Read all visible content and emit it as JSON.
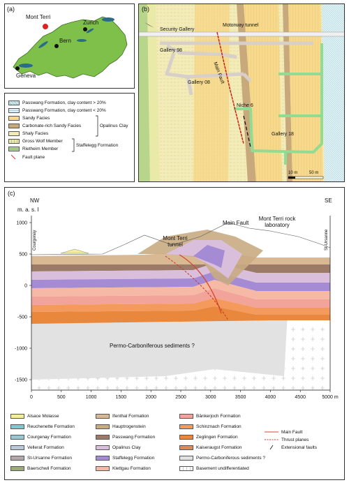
{
  "panel_a": {
    "label": "(a)",
    "places": [
      "Mont Terri",
      "Zurich",
      "Bern",
      "Geneva"
    ]
  },
  "panel_b": {
    "label": "(b)",
    "labels": {
      "motorway": "Motorway tunnel",
      "security": "Security Gallery",
      "g98": "Gallery 98",
      "g08": "Gallery 08",
      "mainfault": "Main Fault",
      "niche": "Niche 6",
      "g18": "Gallery 18"
    },
    "scale": [
      "10 m",
      "50 m"
    ]
  },
  "legend_b": {
    "items": [
      {
        "label": "Passwang Formation, clay content > 20%",
        "color": "#cfe6ef"
      },
      {
        "label": "Passwang Formation, clay content < 20%",
        "color": "#dff0f6"
      },
      {
        "label": "Sandy Facies",
        "color": "#f6d98a"
      },
      {
        "label": "Carbonate-rich Sandy Facies",
        "color": "#c8a97c"
      },
      {
        "label": "Shaly Facies",
        "color": "#f3ecb8"
      },
      {
        "label": "Gross Wolf Member",
        "color": "#e9e9a8"
      },
      {
        "label": "Rietheim Member",
        "color": "#b7d68b"
      },
      {
        "label": "Fault plane",
        "color": "#d33"
      }
    ],
    "groups": {
      "opalinus": "Opalinus Clay",
      "staffelegg": "Staffelegg Formation"
    }
  },
  "panel_c": {
    "label": "(c)",
    "nw": "NW",
    "se": "SE",
    "masl": "m. a. s. l",
    "courgenay": "Courgenay",
    "stursanne": "St-Ursanne",
    "tunnel": "Mont Terri tunnel",
    "mainfault": "Main Fault",
    "rocklab": "Mont Terri rock laboratory",
    "permo": "Permo-Carboniferous sediments ?",
    "y_ticks": [
      "1000",
      "500",
      "0",
      "-500",
      "-1000",
      "-1500"
    ],
    "x_ticks": [
      "0",
      "500",
      "1000",
      "1500",
      "2000",
      "2500",
      "3000",
      "3500",
      "4000",
      "4500",
      "5000 m"
    ]
  },
  "legend_c": {
    "col1": [
      {
        "label": "Alsace Molasse",
        "color": "#f3ee9a"
      },
      {
        "label": "Reuchenette Formation",
        "color": "#7cc9cf"
      },
      {
        "label": "Courgenay Formation",
        "color": "#9cc7d2"
      },
      {
        "label": "Vellerat Formation",
        "color": "#b9c9d9"
      },
      {
        "label": "St-Ursanne Formation",
        "color": "#b3a9ac"
      },
      {
        "label": "Baerschwil Formation",
        "color": "#9bab7a"
      }
    ],
    "col2": [
      {
        "label": "Ifenthal Formation",
        "color": "#d9b994"
      },
      {
        "label": "Hauptrogenstein",
        "color": "#c9ab83"
      },
      {
        "label": "Passwang Formation",
        "color": "#9b7b68"
      },
      {
        "label": "Opalinus Clay",
        "color": "#d9bfdb"
      },
      {
        "label": "Staffelegg Formation",
        "color": "#a58ad4"
      },
      {
        "label": "Klettgau Formation",
        "color": "#f6b9a6"
      }
    ],
    "col3": [
      {
        "label": "Bänkerjoch Formation",
        "color": "#f2a39a"
      },
      {
        "label": "Schinznach Formation",
        "color": "#f39a5c"
      },
      {
        "label": "Zeglingen Formation",
        "color": "#e9873c"
      },
      {
        "label": "Kaiseraugst Formation",
        "color": "#df8a52"
      },
      {
        "label": "Permo-Carboniferous sediments ?",
        "color": "#e2e2e2"
      },
      {
        "label": "Basement undifferentiated",
        "color": "#ffffff"
      }
    ],
    "col4": [
      {
        "label": "Main Fault",
        "color": "#d8452a"
      },
      {
        "label": "Thrust planes",
        "color": "#c0392b"
      },
      {
        "label": "Extensional faults",
        "color": "#333333"
      }
    ]
  }
}
